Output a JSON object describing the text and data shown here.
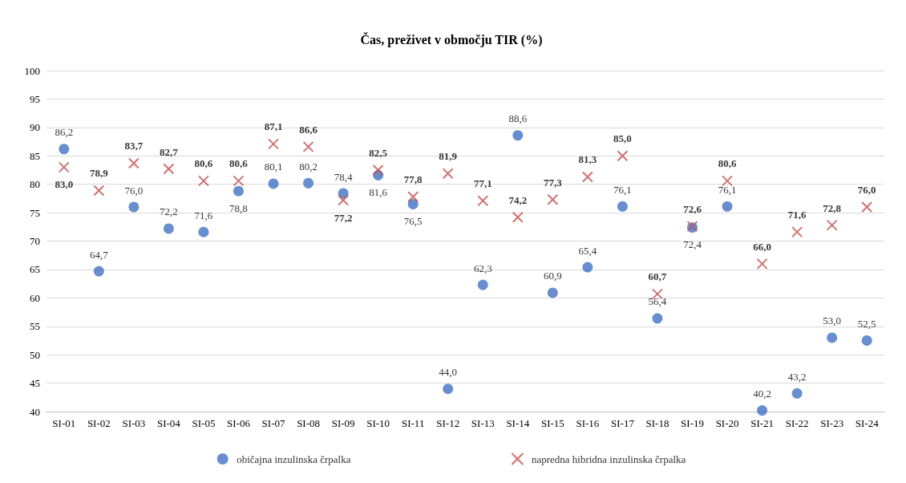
{
  "chart_data": {
    "type": "scatter",
    "title": "Čas, preživet v območju TIR (%)",
    "categories": [
      "SI-01",
      "SI-02",
      "SI-03",
      "SI-04",
      "SI-05",
      "SI-06",
      "SI-07",
      "SI-08",
      "SI-09",
      "SI-10",
      "SI-11",
      "SI-12",
      "SI-13",
      "SI-14",
      "SI-15",
      "SI-16",
      "SI-17",
      "SI-18",
      "SI-19",
      "SI-20",
      "SI-21",
      "SI-22",
      "SI-23",
      "SI-24"
    ],
    "ylim": [
      40,
      100
    ],
    "yticks": [
      40,
      45,
      50,
      55,
      60,
      65,
      70,
      75,
      80,
      85,
      90,
      95,
      100
    ],
    "grid": "y",
    "legend": "bottom",
    "series": [
      {
        "name": "običajna inzulinska črpalka",
        "color": "#4472c4",
        "marker": "circle",
        "values": [
          86.2,
          64.7,
          76.0,
          72.2,
          71.6,
          78.8,
          80.1,
          80.2,
          78.4,
          81.6,
          76.5,
          44.0,
          62.3,
          88.6,
          60.9,
          65.4,
          76.1,
          56.4,
          72.4,
          76.1,
          40.2,
          43.2,
          53.0,
          52.5
        ],
        "value_labels": [
          "86,2",
          "64,7",
          "76,0",
          "72,2",
          "71,6",
          "78,8",
          "80,1",
          "80,2",
          "78,4",
          "81,6",
          "76,5",
          "44,0",
          "62,3",
          "88,6",
          "60,9",
          "65,4",
          "76,1",
          "56,4",
          "72,4",
          "76,1",
          "40,2",
          "43,2",
          "53,0",
          "52,5"
        ]
      },
      {
        "name": "napredna hibridna inzulinska črpalka",
        "color": "#c0504d",
        "marker": "cross",
        "values": [
          83.0,
          78.9,
          83.7,
          82.7,
          80.6,
          80.6,
          87.1,
          86.6,
          77.2,
          82.5,
          77.8,
          81.9,
          77.1,
          74.2,
          77.3,
          81.3,
          85.0,
          60.7,
          72.6,
          80.6,
          66.0,
          71.6,
          72.8,
          76.0
        ],
        "value_labels": [
          "83,0",
          "78,9",
          "83,7",
          "82,7",
          "80,6",
          "80,6",
          "87,1",
          "86,6",
          "77,2",
          "82,5",
          "77,8",
          "81,9",
          "77,1",
          "74,2",
          "77,3",
          "81,3",
          "85,0",
          "60,7",
          "72,6",
          "80,6",
          "66,0",
          "71,6",
          "72,8",
          "76,0"
        ]
      }
    ]
  }
}
